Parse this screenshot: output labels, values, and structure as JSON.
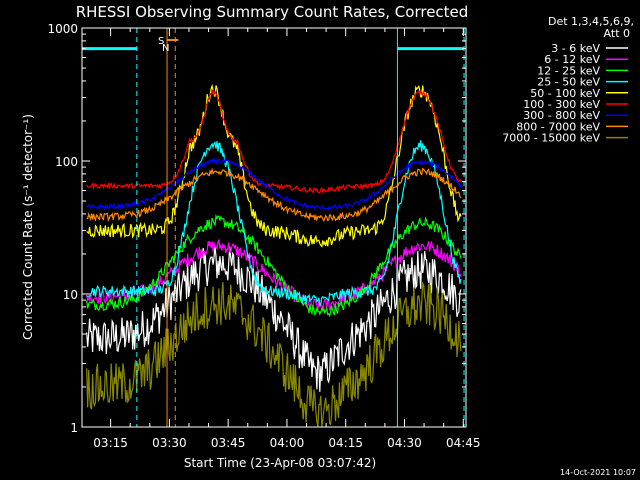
{
  "chart_data": {
    "type": "line",
    "title": "RHESSI Observing Summary Count Rates, Corrected",
    "xlabel": "Start Time (23-Apr-08 03:07:42)",
    "ylabel": "Corrected Count Rate (s⁻¹ detector⁻¹)",
    "y_scale": "log",
    "ylim": [
      1,
      1000
    ],
    "y_ticks": [
      {
        "value": 1,
        "label": "1"
      },
      {
        "value": 10,
        "label": "10"
      },
      {
        "value": 100,
        "label": "100"
      },
      {
        "value": 1000,
        "label": "1000"
      }
    ],
    "x_range_min": [
      0,
      98
    ],
    "x_ticks": [
      {
        "t": 7.3,
        "label": "03:15"
      },
      {
        "t": 22.3,
        "label": "03:30"
      },
      {
        "t": 37.3,
        "label": "03:45"
      },
      {
        "t": 52.3,
        "label": "04:00"
      },
      {
        "t": 67.3,
        "label": "04:15"
      },
      {
        "t": 82.3,
        "label": "04:30"
      },
      {
        "t": 97.3,
        "label": "04:45"
      }
    ],
    "legend_header": [
      "Det 1,3,4,5,6,9,",
      "Att 0"
    ],
    "series": [
      {
        "name": "3 - 6 keV",
        "color": "#ffffff",
        "baseline": 4.6,
        "peak1": 17,
        "peak2": 15,
        "night_floor": 2.4,
        "noise": 0.35
      },
      {
        "name": "6 - 12 keV",
        "color": "#ff00ff",
        "baseline": 9.5,
        "peak1": 23,
        "peak2": 23,
        "night_floor": 8.0,
        "noise": 0.12
      },
      {
        "name": "12 - 25 keV",
        "color": "#00ff00",
        "baseline": 8.3,
        "peak1": 35,
        "peak2": 34,
        "night_floor": 7.0,
        "noise": 0.1
      },
      {
        "name": "25 - 50 keV",
        "color": "#00ffff",
        "baseline": 10.5,
        "peak1": 135,
        "peak2": 130,
        "night_floor": 9.0,
        "noise": 0.1
      },
      {
        "name": "50 - 100 keV",
        "color": "#ffff00",
        "baseline": 30,
        "peak1": 350,
        "peak2": 340,
        "night_floor": 25,
        "noise": 0.12
      },
      {
        "name": "100 - 300 keV",
        "color": "#ff0000",
        "baseline": 65,
        "peak1": 330,
        "peak2": 330,
        "night_floor": 60,
        "noise": 0.04
      },
      {
        "name": "300 - 800 keV",
        "color": "#0000ff",
        "baseline": 45,
        "peak1": 100,
        "peak2": 98,
        "night_floor": 44,
        "noise": 0.04
      },
      {
        "name": "800 - 7000 keV",
        "color": "#ff8800",
        "baseline": 38,
        "peak1": 83,
        "peak2": 83,
        "night_floor": 37,
        "noise": 0.06
      },
      {
        "name": "7000 - 15000 keV",
        "color": "#888800",
        "baseline": 2.0,
        "peak1": 8.5,
        "peak2": 8.2,
        "night_floor": 1.2,
        "noise": 0.4
      }
    ],
    "saa_flags": [
      {
        "start_min": 0,
        "end_min": 14.0,
        "level": 700
      },
      {
        "start_min": 80.5,
        "end_min": 97.5,
        "level": 700
      }
    ],
    "eclipse_markers_min": [
      14.0,
      80.5,
      97.5
    ],
    "sn_marker": {
      "label_s": "S",
      "label_n": "N",
      "t_min": 21.7,
      "t_dash_min": 23.8
    }
  },
  "footer_date": "14-Oct-2021 10:07"
}
